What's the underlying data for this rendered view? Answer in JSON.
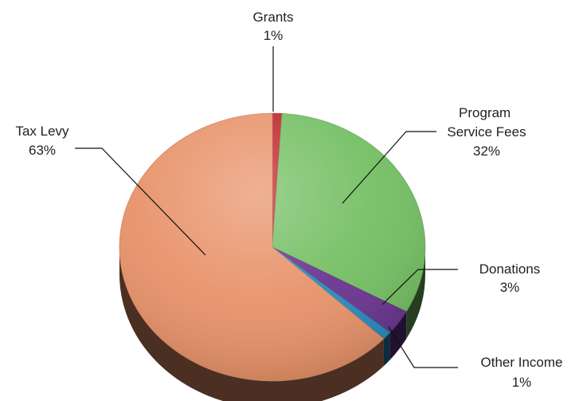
{
  "chart_data": {
    "type": "pie",
    "three_d": true,
    "legend": "none",
    "slices": [
      {
        "name": "Grants",
        "value": 1,
        "label": "1%",
        "color": "#c0262b"
      },
      {
        "name": "Program Service Fees",
        "value": 32,
        "label": "32%",
        "color": "#74bf63"
      },
      {
        "name": "Donations",
        "value": 3,
        "label": "3%",
        "color": "#6a3590"
      },
      {
        "name": "Other Income",
        "value": 1,
        "label": "1%",
        "color": "#2a8bbf"
      },
      {
        "name": "Tax Levy",
        "value": 63,
        "label": "63%",
        "color": "#e8936a"
      }
    ]
  }
}
